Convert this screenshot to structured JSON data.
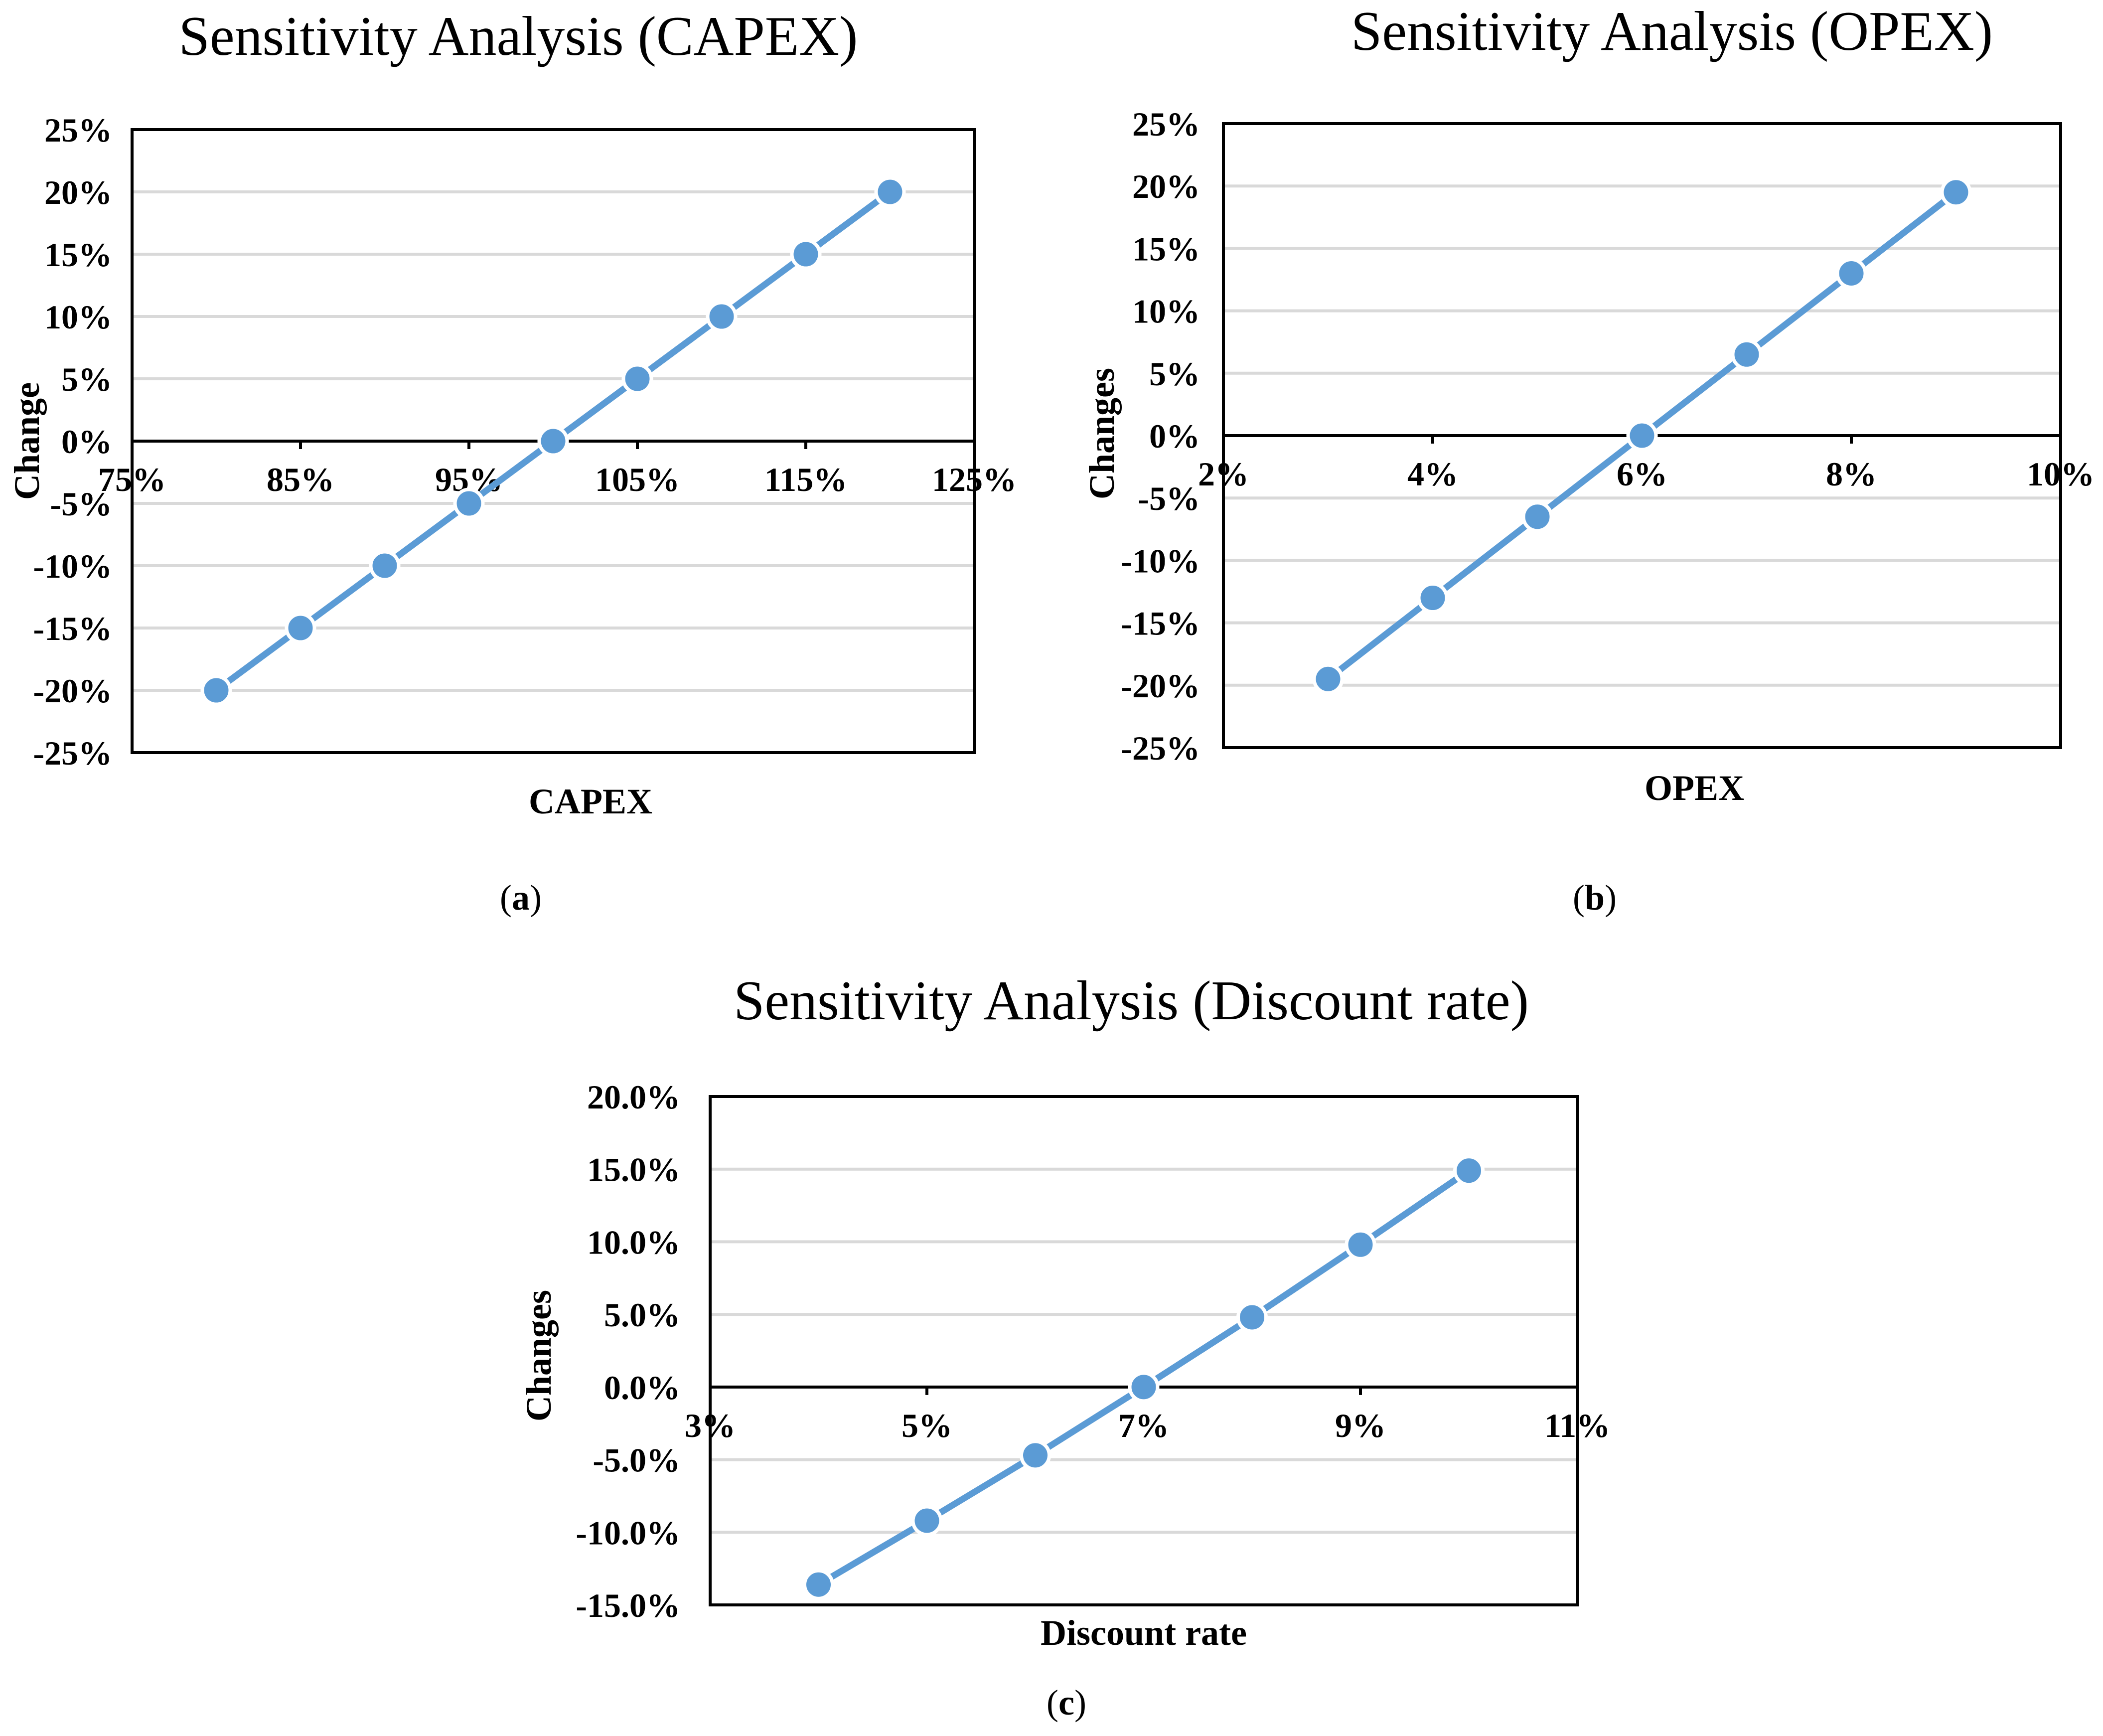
{
  "colors": {
    "series": "#5b9bd5",
    "marker": "#5b9bd5",
    "grid": "#d9d9d9",
    "axis": "#000000"
  },
  "chart_data": [
    {
      "id": "a",
      "type": "line",
      "title": "Sensitivity Analysis (CAPEX)",
      "xlabel": "CAPEX",
      "ylabel": "Change",
      "panel_label": "a",
      "xlim": [
        75,
        125
      ],
      "ylim": [
        -25,
        25
      ],
      "x_ticks": [
        75,
        85,
        95,
        105,
        115,
        125
      ],
      "x_tick_labels": [
        "75%",
        "85%",
        "95%",
        "105%",
        "115%",
        "125%"
      ],
      "y_ticks": [
        25,
        20,
        15,
        10,
        5,
        0,
        -5,
        -10,
        -15,
        -20,
        -25
      ],
      "y_tick_labels": [
        "25%",
        "20%",
        "15%",
        "10%",
        "5%",
        "0%",
        "-5%",
        "-10%",
        "-15%",
        "-20%",
        "-25%"
      ],
      "grid": true,
      "series": [
        {
          "name": "Change",
          "x": [
            80,
            85,
            90,
            95,
            100,
            105,
            110,
            115,
            120
          ],
          "y": [
            -20,
            -15,
            -10,
            -5,
            0,
            5,
            10,
            15,
            20
          ]
        }
      ]
    },
    {
      "id": "b",
      "type": "line",
      "title": "Sensitivity Analysis (OPEX)",
      "xlabel": "OPEX",
      "ylabel": "Changes",
      "panel_label": "b",
      "xlim": [
        2,
        10
      ],
      "ylim": [
        -25,
        25
      ],
      "x_ticks": [
        2,
        4,
        6,
        8,
        10
      ],
      "x_tick_labels": [
        "2%",
        "4%",
        "6%",
        "8%",
        "10%"
      ],
      "y_ticks": [
        25,
        20,
        15,
        10,
        5,
        0,
        -5,
        -10,
        -15,
        -20,
        -25
      ],
      "y_tick_labels": [
        "25%",
        "20%",
        "15%",
        "10%",
        "5%",
        "0%",
        "-5%",
        "-10%",
        "-15%",
        "-20%",
        "-25%"
      ],
      "grid": true,
      "series": [
        {
          "name": "Changes",
          "x": [
            3,
            4,
            5,
            6,
            7,
            8,
            9
          ],
          "y": [
            -19.5,
            -13,
            -6.5,
            0,
            6.5,
            13,
            19.5
          ]
        }
      ]
    },
    {
      "id": "c",
      "type": "line",
      "title": "Sensitivity Analysis (Discount rate)",
      "xlabel": "Discount rate",
      "ylabel": "Changes",
      "panel_label": "c",
      "xlim": [
        3,
        11
      ],
      "ylim": [
        -15,
        20
      ],
      "x_ticks": [
        3,
        5,
        7,
        9,
        11
      ],
      "x_tick_labels": [
        "3%",
        "5%",
        "7%",
        "9%",
        "11%"
      ],
      "y_ticks": [
        20,
        15,
        10,
        5,
        0,
        -5,
        -10,
        -15
      ],
      "y_tick_labels": [
        "20.0%",
        "15.0%",
        "10.0%",
        "5.0%",
        "0.0%",
        "-5.0%",
        "-10.0%",
        "-15.0%"
      ],
      "grid": true,
      "series": [
        {
          "name": "Changes",
          "x": [
            4,
            5,
            6,
            7,
            8,
            9,
            10
          ],
          "y": [
            -13.6,
            -9.2,
            -4.7,
            0,
            4.8,
            9.8,
            14.9
          ]
        }
      ]
    }
  ]
}
